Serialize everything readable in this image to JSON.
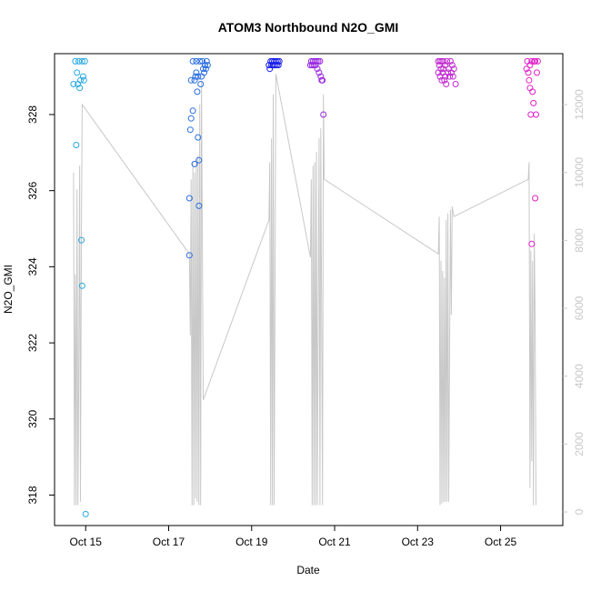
{
  "chart_data": {
    "type": "scatter",
    "title": "ATOM3 Northbound N2O_GMI",
    "xlabel": "Date",
    "ylabel": "N2O_GMI",
    "x_axis": {
      "type": "date",
      "range": [
        "2017-10-14T06:00",
        "2017-10-26T12:00"
      ],
      "ticks": [
        {
          "value": "2017-10-15",
          "label": "Oct 15"
        },
        {
          "value": "2017-10-17",
          "label": "Oct 17"
        },
        {
          "value": "2017-10-19",
          "label": "Oct 19"
        },
        {
          "value": "2017-10-21",
          "label": "Oct 21"
        },
        {
          "value": "2017-10-23",
          "label": "Oct 23"
        },
        {
          "value": "2017-10-25",
          "label": "Oct 25"
        }
      ]
    },
    "y_axis_left": {
      "range": [
        317.2,
        329.6
      ],
      "ticks": [
        318,
        320,
        322,
        324,
        326,
        328
      ]
    },
    "y_axis_right": {
      "quantity": "altitude",
      "range": [
        -400,
        13500
      ],
      "ticks": [
        0,
        2000,
        4000,
        6000,
        8000,
        10000,
        12000
      ],
      "color": "#c8c8c8"
    },
    "series": [
      {
        "kind": "points",
        "color": "#29a8e0",
        "points": [
          [
            "2017-10-14T17:00",
            328.8
          ],
          [
            "2017-10-14T18:00",
            329.4
          ],
          [
            "2017-10-14T18:30",
            327.2
          ],
          [
            "2017-10-14T19:00",
            329.1
          ],
          [
            "2017-10-14T19:30",
            328.8
          ],
          [
            "2017-10-14T20:00",
            329.4
          ],
          [
            "2017-10-14T20:30",
            328.7
          ],
          [
            "2017-10-14T21:00",
            328.9
          ],
          [
            "2017-10-14T21:30",
            324.7
          ],
          [
            "2017-10-14T22:00",
            329.4
          ],
          [
            "2017-10-14T22:00",
            323.5
          ],
          [
            "2017-10-14T22:30",
            329.0
          ],
          [
            "2017-10-14T23:00",
            328.9
          ],
          [
            "2017-10-14T23:30",
            329.4
          ],
          [
            "2017-10-15T00:00",
            317.5
          ]
        ]
      },
      {
        "kind": "points",
        "color": "#2a6ee0",
        "points": [
          [
            "2017-10-17T12:00",
            325.8
          ],
          [
            "2017-10-17T12:00",
            324.3
          ],
          [
            "2017-10-17T12:30",
            327.6
          ],
          [
            "2017-10-17T13:00",
            327.9
          ],
          [
            "2017-10-17T13:00",
            328.9
          ],
          [
            "2017-10-17T14:00",
            328.1
          ],
          [
            "2017-10-17T14:00",
            329.4
          ],
          [
            "2017-10-17T15:00",
            326.7
          ],
          [
            "2017-10-17T15:00",
            328.9
          ],
          [
            "2017-10-17T15:30",
            329.0
          ],
          [
            "2017-10-17T16:00",
            329.4
          ],
          [
            "2017-10-17T16:00",
            329.1
          ],
          [
            "2017-10-17T16:30",
            328.6
          ],
          [
            "2017-10-17T17:00",
            327.4
          ],
          [
            "2017-10-17T17:00",
            329.0
          ],
          [
            "2017-10-17T17:30",
            326.8
          ],
          [
            "2017-10-17T17:30",
            325.6
          ],
          [
            "2017-10-17T18:00",
            329.4
          ],
          [
            "2017-10-17T18:30",
            328.8
          ],
          [
            "2017-10-17T19:00",
            329.0
          ],
          [
            "2017-10-17T19:30",
            329.4
          ],
          [
            "2017-10-17T20:00",
            329.2
          ],
          [
            "2017-10-17T20:30",
            329.1
          ],
          [
            "2017-10-17T21:00",
            329.3
          ],
          [
            "2017-10-17T21:30",
            329.2
          ],
          [
            "2017-10-17T22:00",
            329.4
          ],
          [
            "2017-10-17T22:30",
            329.3
          ]
        ]
      },
      {
        "kind": "points",
        "color": "#1a1ee8",
        "points": [
          [
            "2017-10-19T10:00",
            329.3
          ],
          [
            "2017-10-19T10:30",
            329.2
          ],
          [
            "2017-10-19T11:00",
            329.4
          ],
          [
            "2017-10-19T11:30",
            329.3
          ],
          [
            "2017-10-19T12:00",
            329.4
          ],
          [
            "2017-10-19T12:30",
            329.3
          ],
          [
            "2017-10-19T13:00",
            329.4
          ],
          [
            "2017-10-19T13:30",
            329.3
          ],
          [
            "2017-10-19T14:00",
            329.4
          ],
          [
            "2017-10-19T14:30",
            329.3
          ],
          [
            "2017-10-19T15:00",
            329.4
          ],
          [
            "2017-10-19T15:30",
            329.3
          ],
          [
            "2017-10-19T16:00",
            329.4
          ]
        ]
      },
      {
        "kind": "points",
        "color": "#9a2ae0",
        "points": [
          [
            "2017-10-20T10:00",
            329.3
          ],
          [
            "2017-10-20T10:30",
            329.4
          ],
          [
            "2017-10-20T11:00",
            329.3
          ],
          [
            "2017-10-20T11:30",
            329.4
          ],
          [
            "2017-10-20T12:00",
            329.3
          ],
          [
            "2017-10-20T12:30",
            329.4
          ],
          [
            "2017-10-20T13:00",
            329.3
          ],
          [
            "2017-10-20T13:30",
            329.4
          ],
          [
            "2017-10-20T14:00",
            329.2
          ],
          [
            "2017-10-20T14:30",
            329.4
          ],
          [
            "2017-10-20T15:00",
            329.1
          ],
          [
            "2017-10-20T15:30",
            329.4
          ],
          [
            "2017-10-20T16:00",
            329.0
          ],
          [
            "2017-10-20T16:30",
            328.9
          ],
          [
            "2017-10-20T17:00",
            328.9
          ],
          [
            "2017-10-20T17:30",
            328.0
          ]
        ]
      },
      {
        "kind": "points",
        "color": "#c02ad0",
        "points": [
          [
            "2017-10-23T12:00",
            329.4
          ],
          [
            "2017-10-23T12:00",
            329.1
          ],
          [
            "2017-10-23T12:30",
            329.3
          ],
          [
            "2017-10-23T13:00",
            329.4
          ],
          [
            "2017-10-23T13:00",
            329.0
          ],
          [
            "2017-10-23T13:30",
            329.2
          ],
          [
            "2017-10-23T14:00",
            329.4
          ],
          [
            "2017-10-23T14:00",
            328.9
          ],
          [
            "2017-10-23T14:30",
            329.1
          ],
          [
            "2017-10-23T15:00",
            329.4
          ],
          [
            "2017-10-23T15:00",
            329.2
          ],
          [
            "2017-10-23T15:30",
            328.9
          ],
          [
            "2017-10-23T16:00",
            329.3
          ],
          [
            "2017-10-23T16:00",
            329.0
          ],
          [
            "2017-10-23T16:30",
            328.8
          ],
          [
            "2017-10-23T17:00",
            329.4
          ],
          [
            "2017-10-23T17:30",
            329.1
          ],
          [
            "2017-10-23T18:00",
            329.2
          ],
          [
            "2017-10-23T18:30",
            329.0
          ],
          [
            "2017-10-23T19:00",
            329.4
          ],
          [
            "2017-10-23T19:30",
            329.1
          ],
          [
            "2017-10-23T20:00",
            329.3
          ],
          [
            "2017-10-23T20:30",
            329.0
          ],
          [
            "2017-10-23T21:00",
            329.2
          ],
          [
            "2017-10-23T22:00",
            328.8
          ]
        ]
      },
      {
        "kind": "points",
        "color": "#e01ec8",
        "points": [
          [
            "2017-10-25T15:00",
            329.2
          ],
          [
            "2017-10-25T15:30",
            329.4
          ],
          [
            "2017-10-25T16:00",
            329.1
          ],
          [
            "2017-10-25T16:30",
            328.9
          ],
          [
            "2017-10-25T17:00",
            328.7
          ],
          [
            "2017-10-25T17:00",
            329.3
          ],
          [
            "2017-10-25T17:30",
            328.0
          ],
          [
            "2017-10-25T18:00",
            329.4
          ],
          [
            "2017-10-25T18:00",
            324.6
          ],
          [
            "2017-10-25T18:30",
            328.6
          ],
          [
            "2017-10-25T19:00",
            328.3
          ],
          [
            "2017-10-25T19:30",
            329.4
          ],
          [
            "2017-10-25T20:00",
            329.4
          ],
          [
            "2017-10-25T20:00",
            325.8
          ],
          [
            "2017-10-25T20:30",
            328.0
          ],
          [
            "2017-10-25T21:00",
            329.1
          ],
          [
            "2017-10-25T21:30",
            329.4
          ]
        ]
      },
      {
        "kind": "line",
        "axis": "right",
        "color": "#c8c8c8",
        "points": [
          [
            "2017-10-14T17:00",
            10000
          ],
          [
            "2017-10-14T17:30",
            200
          ],
          [
            "2017-10-14T18:00",
            7000
          ],
          [
            "2017-10-14T18:30",
            200
          ],
          [
            "2017-10-14T19:00",
            9500
          ],
          [
            "2017-10-14T19:30",
            200
          ],
          [
            "2017-10-14T20:00",
            4000
          ],
          [
            "2017-10-14T20:30",
            10200
          ],
          [
            "2017-10-14T21:00",
            300
          ],
          [
            "2017-10-14T21:30",
            8000
          ],
          [
            "2017-10-14T22:00",
            12000
          ],
          [
            "2017-10-17T12:00",
            7600
          ],
          [
            "2017-10-17T12:30",
            5200
          ],
          [
            "2017-10-17T13:00",
            9800
          ],
          [
            "2017-10-17T13:30",
            200
          ],
          [
            "2017-10-17T14:00",
            10300
          ],
          [
            "2017-10-17T14:30",
            200
          ],
          [
            "2017-10-17T15:00",
            10000
          ],
          [
            "2017-10-17T15:30",
            400
          ],
          [
            "2017-10-17T16:00",
            10400
          ],
          [
            "2017-10-17T16:30",
            300
          ],
          [
            "2017-10-17T17:00",
            10500
          ],
          [
            "2017-10-17T17:30",
            200
          ],
          [
            "2017-10-17T18:00",
            12000
          ],
          [
            "2017-10-17T18:30",
            200
          ],
          [
            "2017-10-17T19:00",
            12700
          ],
          [
            "2017-10-17T20:00",
            3300
          ],
          [
            "2017-10-19T10:00",
            8600
          ],
          [
            "2017-10-19T10:30",
            10300
          ],
          [
            "2017-10-19T11:00",
            200
          ],
          [
            "2017-10-19T11:30",
            11000
          ],
          [
            "2017-10-19T12:00",
            200
          ],
          [
            "2017-10-19T12:30",
            12300
          ],
          [
            "2017-10-19T13:00",
            200
          ],
          [
            "2017-10-19T14:00",
            12900
          ],
          [
            "2017-10-20T10:00",
            7500
          ],
          [
            "2017-10-20T10:30",
            9800
          ],
          [
            "2017-10-20T11:00",
            200
          ],
          [
            "2017-10-20T11:30",
            10200
          ],
          [
            "2017-10-20T12:00",
            200
          ],
          [
            "2017-10-20T12:30",
            10300
          ],
          [
            "2017-10-20T13:00",
            200
          ],
          [
            "2017-10-20T13:30",
            10600
          ],
          [
            "2017-10-20T14:00",
            200
          ],
          [
            "2017-10-20T15:00",
            11000
          ],
          [
            "2017-10-20T15:30",
            200
          ],
          [
            "2017-10-20T16:00",
            11300
          ],
          [
            "2017-10-20T17:00",
            200
          ],
          [
            "2017-10-20T17:30",
            12300
          ],
          [
            "2017-10-20T18:00",
            9800
          ],
          [
            "2017-10-23T12:00",
            7600
          ],
          [
            "2017-10-23T12:30",
            8700
          ],
          [
            "2017-10-23T13:00",
            200
          ],
          [
            "2017-10-23T13:30",
            7400
          ],
          [
            "2017-10-23T14:00",
            250
          ],
          [
            "2017-10-23T14:30",
            7100
          ],
          [
            "2017-10-23T15:00",
            300
          ],
          [
            "2017-10-23T15:30",
            6900
          ],
          [
            "2017-10-23T16:00",
            300
          ],
          [
            "2017-10-23T16:30",
            8600
          ],
          [
            "2017-10-23T17:00",
            300
          ],
          [
            "2017-10-23T17:30",
            8800
          ],
          [
            "2017-10-23T18:00",
            300
          ],
          [
            "2017-10-23T19:00",
            8900
          ],
          [
            "2017-10-23T19:30",
            5800
          ],
          [
            "2017-10-23T20:00",
            9000
          ],
          [
            "2017-10-23T21:00",
            8700
          ],
          [
            "2017-10-25T16:00",
            9800
          ],
          [
            "2017-10-25T16:30",
            10300
          ],
          [
            "2017-10-25T17:00",
            700
          ],
          [
            "2017-10-25T17:30",
            7700
          ],
          [
            "2017-10-25T18:00",
            1500
          ],
          [
            "2017-10-25T18:30",
            7400
          ],
          [
            "2017-10-25T19:00",
            200
          ],
          [
            "2017-10-25T19:30",
            8200
          ],
          [
            "2017-10-25T20:00",
            5500
          ],
          [
            "2017-10-25T20:30",
            200
          ]
        ]
      }
    ]
  }
}
